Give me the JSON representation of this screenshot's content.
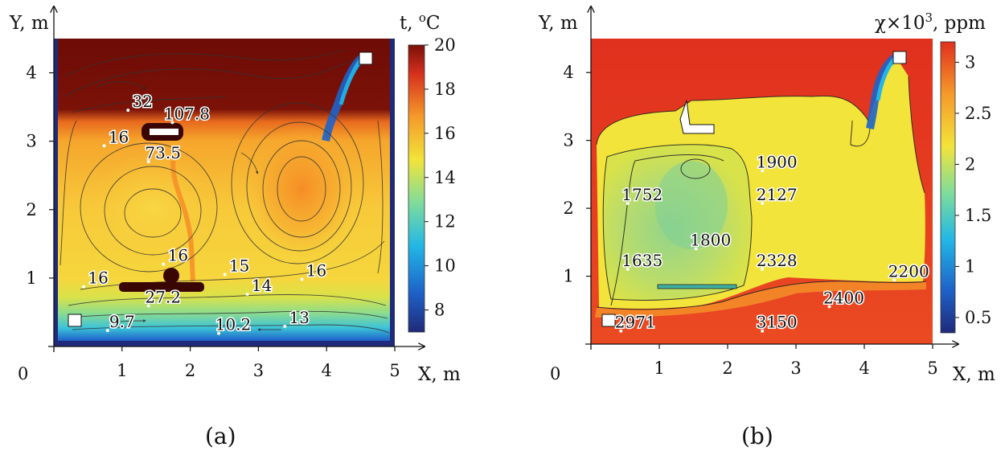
{
  "chart_data": [
    {
      "type": "heatmap",
      "panel_label": "(a)",
      "xlabel": "X, m",
      "ylabel": "Y, m",
      "origin_label": "0",
      "xlim": [
        0,
        5
      ],
      "ylim": [
        0,
        4.5
      ],
      "xticks": [
        1,
        2,
        3,
        4,
        5
      ],
      "yticks": [
        1,
        2,
        3,
        4
      ],
      "colorbar": {
        "title_prefix": "t, ",
        "title_sup": "o",
        "title_suffix": "C",
        "ticks": [
          8,
          10,
          12,
          14,
          16,
          18,
          20
        ],
        "range": [
          7,
          20
        ],
        "colors": [
          "#1f2a7a",
          "#1e63c9",
          "#22b7e6",
          "#7fdc9b",
          "#f2e43a",
          "#f59a2a",
          "#d6301e",
          "#7a1008"
        ]
      },
      "annotations": [
        {
          "text": "32",
          "x": 1.3,
          "y": 3.5
        },
        {
          "text": "107.8",
          "x": 1.95,
          "y": 3.32
        },
        {
          "text": "16",
          "x": 0.95,
          "y": 2.98
        },
        {
          "text": "73.5",
          "x": 1.6,
          "y": 2.75
        },
        {
          "text": "16",
          "x": 1.82,
          "y": 1.25
        },
        {
          "text": "15",
          "x": 2.72,
          "y": 1.1
        },
        {
          "text": "16",
          "x": 3.85,
          "y": 1.03
        },
        {
          "text": "16",
          "x": 0.65,
          "y": 0.92
        },
        {
          "text": "27.2",
          "x": 1.6,
          "y": 0.64
        },
        {
          "text": "14",
          "x": 3.05,
          "y": 0.81
        },
        {
          "text": "9.7",
          "x": 1.0,
          "y": 0.28
        },
        {
          "text": "13",
          "x": 3.6,
          "y": 0.34
        },
        {
          "text": "10.2",
          "x": 2.63,
          "y": 0.24
        }
      ]
    },
    {
      "type": "heatmap",
      "panel_label": "(b)",
      "xlabel": "X, m",
      "ylabel": "Y, m",
      "origin_label": "0",
      "xlim": [
        0,
        5
      ],
      "ylim": [
        0,
        4.5
      ],
      "xticks": [
        1,
        2,
        3,
        4,
        5
      ],
      "yticks": [
        1,
        2,
        3,
        4
      ],
      "colorbar": {
        "title_prefix": "χ×10",
        "title_sup": "3",
        "title_suffix": ", ppm",
        "ticks": [
          "0.5",
          "1",
          "1.5",
          "2",
          "2.5",
          "3"
        ],
        "tick_values": [
          0.5,
          1,
          1.5,
          2,
          2.5,
          3
        ],
        "range": [
          0.35,
          3.2
        ],
        "colors": [
          "#1f2a7a",
          "#1e63c9",
          "#22b7e6",
          "#7fdc9b",
          "#f2e43a",
          "#f59a2a",
          "#e0301e"
        ]
      },
      "annotations": [
        {
          "text": "1900",
          "x": 2.72,
          "y": 2.6
        },
        {
          "text": "1752",
          "x": 0.75,
          "y": 2.12
        },
        {
          "text": "2127",
          "x": 2.72,
          "y": 2.12
        },
        {
          "text": "1800",
          "x": 1.75,
          "y": 1.45
        },
        {
          "text": "1635",
          "x": 0.75,
          "y": 1.15
        },
        {
          "text": "2328",
          "x": 2.72,
          "y": 1.15
        },
        {
          "text": "2200",
          "x": 4.65,
          "y": 0.99
        },
        {
          "text": "2400",
          "x": 3.7,
          "y": 0.6
        },
        {
          "text": "2971",
          "x": 0.65,
          "y": 0.24
        },
        {
          "text": "3150",
          "x": 2.72,
          "y": 0.24
        }
      ]
    }
  ]
}
